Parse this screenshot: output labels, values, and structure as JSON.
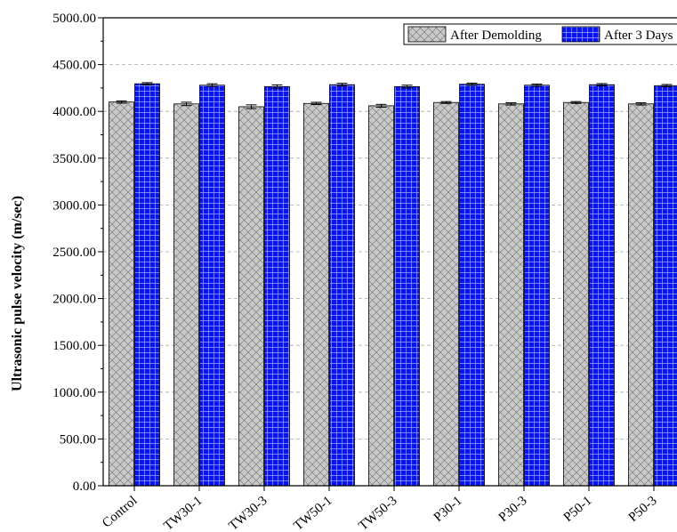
{
  "chart_data": {
    "type": "bar",
    "ylabel": "Ultrasonic pulse velocity (m/sec)",
    "xlabel": "",
    "ylim": [
      0,
      5000
    ],
    "yticks": [
      "0.00",
      "500.00",
      "1000.00",
      "1500.00",
      "2000.00",
      "2500.00",
      "3000.00",
      "3500.00",
      "4000.00",
      "4500.00",
      "5000.00"
    ],
    "grid": "horizontal-dashed",
    "legend_position": "top-right",
    "categories": [
      "Control",
      "TW30-1",
      "TW30-3",
      "TW50-1",
      "TW50-3",
      "P30-1",
      "P30-3",
      "P50-1",
      "P50-3"
    ],
    "series": [
      {
        "name": "After Demolding",
        "color": "#c8c8c8",
        "pattern": "crosshatch",
        "values": [
          4100,
          4080,
          4050,
          4085,
          4060,
          4095,
          4080,
          4095,
          4080
        ],
        "errors": [
          12,
          18,
          20,
          12,
          15,
          10,
          12,
          10,
          12
        ]
      },
      {
        "name": "After 3 Days",
        "color": "#0a14f0",
        "pattern": "grid",
        "values": [
          4295,
          4280,
          4265,
          4285,
          4265,
          4290,
          4280,
          4285,
          4275
        ],
        "errors": [
          12,
          15,
          18,
          15,
          15,
          12,
          12,
          12,
          12
        ]
      }
    ]
  }
}
